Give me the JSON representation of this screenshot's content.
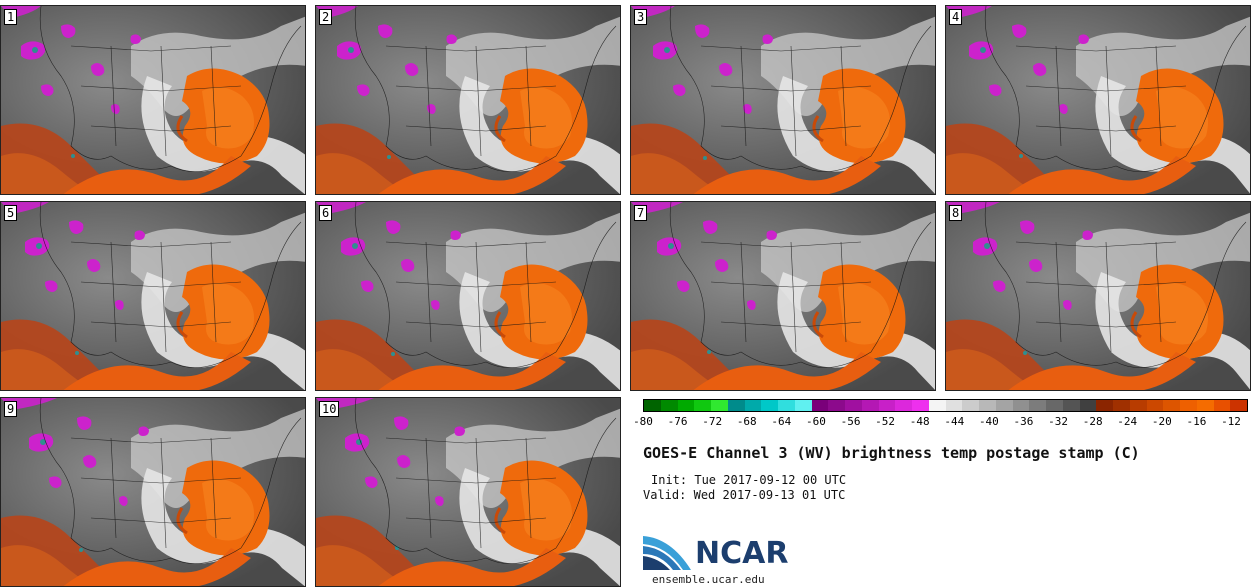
{
  "figure": {
    "title": "GOES-E Channel 3 (WV) brightness temp postage stamp (C)",
    "init_label": "Init:",
    "init_value": "Tue 2017-09-12 00 UTC",
    "valid_label": "Valid:",
    "valid_value": "Wed 2017-09-13 01 UTC",
    "logo_text": "NCAR",
    "logo_url": "ensemble.ucar.edu"
  },
  "panels": [
    {
      "number": "1"
    },
    {
      "number": "2"
    },
    {
      "number": "3"
    },
    {
      "number": "4"
    },
    {
      "number": "5"
    },
    {
      "number": "6"
    },
    {
      "number": "7"
    },
    {
      "number": "8"
    },
    {
      "number": "9"
    },
    {
      "number": "10"
    }
  ],
  "colorbar": {
    "ticks": [
      "-80",
      "-76",
      "-72",
      "-68",
      "-64",
      "-60",
      "-56",
      "-52",
      "-48",
      "-44",
      "-40",
      "-36",
      "-32",
      "-28",
      "-24",
      "-20",
      "-16",
      "-12"
    ],
    "colors": [
      "#006400",
      "#008a00",
      "#00aa00",
      "#10c810",
      "#30e830",
      "#008b8b",
      "#00aaaa",
      "#00c8c8",
      "#30dede",
      "#60f0f0",
      "#7a007a",
      "#8c0a8c",
      "#a010a0",
      "#b418b4",
      "#c820c8",
      "#dc28dc",
      "#ee30ee",
      "#f4f4f4",
      "#e0e0e0",
      "#cccccc",
      "#b8b8b8",
      "#a4a4a4",
      "#909090",
      "#7c7c7c",
      "#686868",
      "#545454",
      "#404040",
      "#8b2500",
      "#a03000",
      "#b83c00",
      "#cc4800",
      "#dd5500",
      "#ee6000",
      "#f56c00",
      "#e85000",
      "#cc3300"
    ]
  }
}
